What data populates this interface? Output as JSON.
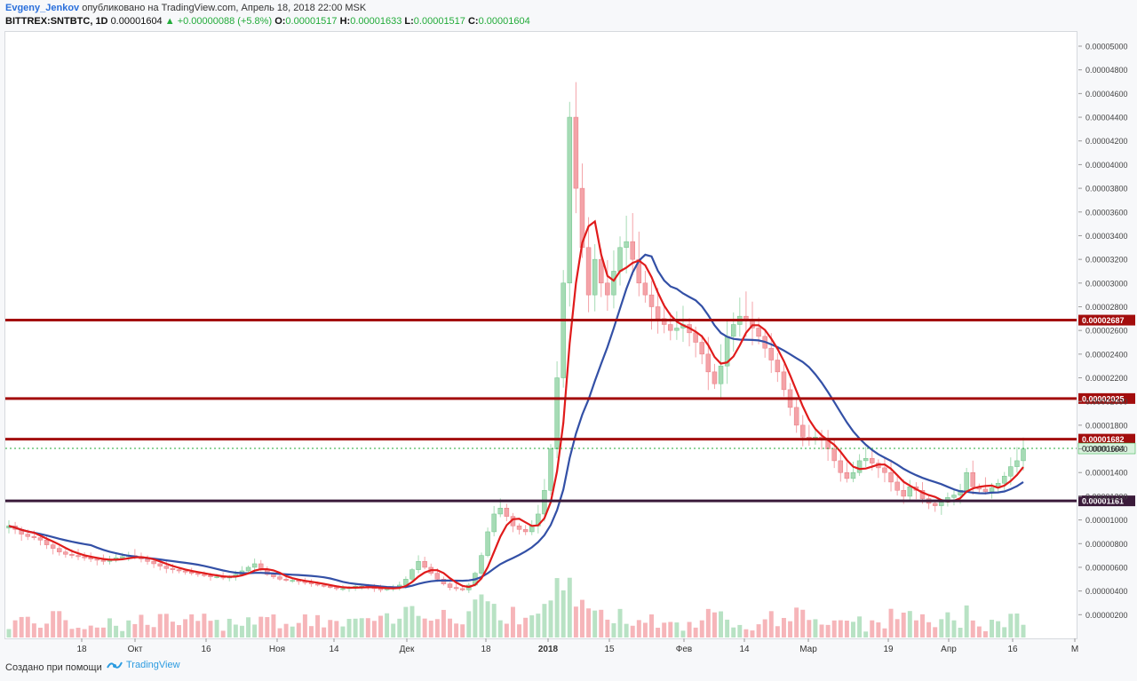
{
  "header": {
    "author": "Evgeny_Jenkov",
    "published_text": " опубликовано на TradingView.com, Апрель 18, 2018 22:00 MSK",
    "symbol": "BITTREX:SNTBTC, 1D",
    "last": "0.00001604",
    "change": "▲ +0.00000088 (+5.8%)",
    "open_label": "O:",
    "open": "0.00001517",
    "high_label": "H:",
    "high": "0.00001633",
    "low_label": "L:",
    "low": "0.00001517",
    "close_label": "C:",
    "close": "0.00001604"
  },
  "footer": {
    "created_with": "Создано при помощи",
    "brand": "TradingView"
  },
  "colors": {
    "up": "#22ab3a",
    "down": "#e0474c",
    "up_candle": "#a6dbb5",
    "down_candle": "#f4a3a8",
    "ma_fast": "#e01b1b",
    "ma_slow": "#3350a6",
    "volume_ma": "#f4a86a",
    "level": "#a30d0d",
    "support": "#3a1a3a",
    "current": "#22ab3a"
  },
  "chart_data": {
    "type": "candlestick",
    "y_scale": "linear",
    "ylim": [
      0,
      5.12e-05
    ],
    "y_ticks": [
      "0.00000200",
      "0.00000400",
      "0.00000600",
      "0.00000800",
      "0.00001000",
      "0.00001200",
      "0.00001400",
      "0.00001600",
      "0.00001800",
      "0.00002000",
      "0.00002200",
      "0.00002400",
      "0.00002600",
      "0.00002800",
      "0.00003000",
      "0.00003200",
      "0.00003400",
      "0.00003600",
      "0.00003800",
      "0.00004000",
      "0.00004200",
      "0.00004400",
      "0.00004600",
      "0.00004800",
      "0.00005000"
    ],
    "x_ticks": [
      "18",
      "Окт",
      "16",
      "Ноя",
      "14",
      "Дек",
      "18",
      "2018",
      "15",
      "Фев",
      "14",
      "Мар",
      "19",
      "Апр",
      "16",
      "М"
    ],
    "horizontal_levels": [
      {
        "value": 2.687e-05,
        "label": "0.00002687",
        "kind": "resistance"
      },
      {
        "value": 2.025e-05,
        "label": "0.00002025",
        "kind": "resistance"
      },
      {
        "value": 1.682e-05,
        "label": "0.00001682",
        "kind": "resistance"
      },
      {
        "value": 1.161e-05,
        "label": "0.00001161",
        "kind": "support"
      }
    ],
    "current_price": {
      "value": 1.604e-05,
      "label": "0.00001604"
    },
    "close_series_approx": [
      9.5e-06,
      9.2e-06,
      8.8e-06,
      8.6e-06,
      8.5e-06,
      8.3e-06,
      7.9e-06,
      7.6e-06,
      7.3e-06,
      7.1e-06,
      7e-06,
      6.9e-06,
      6.8e-06,
      6.7e-06,
      6.6e-06,
      6.5e-06,
      6.6e-06,
      6.8e-06,
      6.9e-06,
      7e-06,
      6.9e-06,
      6.7e-06,
      6.5e-06,
      6.3e-06,
      6.1e-06,
      5.9e-06,
      5.8e-06,
      5.7e-06,
      5.6e-06,
      5.5e-06,
      5.4e-06,
      5.3e-06,
      5.2e-06,
      5.2e-06,
      5.1e-06,
      5.2e-06,
      5.4e-06,
      5.7e-06,
      6e-06,
      6.3e-06,
      5.8e-06,
      5.4e-06,
      5.2e-06,
      5e-06,
      4.9e-06,
      4.9e-06,
      4.8e-06,
      4.7e-06,
      4.6e-06,
      4.5e-06,
      4.4e-06,
      4.3e-06,
      4.2e-06,
      4.2e-06,
      4.3e-06,
      4.4e-06,
      4.4e-06,
      4.3e-06,
      4.2e-06,
      4.1e-06,
      4.2e-06,
      4.3e-06,
      4.5e-06,
      5e-06,
      5.8e-06,
      6.5e-06,
      6e-06,
      5.5e-06,
      5e-06,
      4.6e-06,
      4.3e-06,
      4.2e-06,
      4.1e-06,
      4.5e-06,
      5.5e-06,
      7e-06,
      9e-06,
      1.05e-05,
      1.1e-05,
      1.03e-05,
      9.5e-06,
      9.2e-06,
      9e-06,
      9.5e-06,
      1.05e-05,
      1.25e-05,
      1.6e-05,
      2.2e-05,
      3e-05,
      4.4e-05,
      3.8e-05,
      3.3e-05,
      2.9e-05,
      3.2e-05,
      3e-05,
      2.9e-05,
      3.1e-05,
      3.3e-05,
      3.35e-05,
      3.2e-05,
      3e-05,
      2.9e-05,
      2.8e-05,
      2.7e-05,
      2.65e-05,
      2.6e-05,
      2.62e-05,
      2.65e-05,
      2.58e-05,
      2.5e-05,
      2.4e-05,
      2.25e-05,
      2.15e-05,
      2.3e-05,
      2.55e-05,
      2.65e-05,
      2.72e-05,
      2.68e-05,
      2.62e-05,
      2.55e-05,
      2.45e-05,
      2.35e-05,
      2.25e-05,
      2.1e-05,
      1.95e-05,
      1.8e-05,
      1.7e-05,
      1.69e-05,
      1.7e-05,
      1.68e-05,
      1.6e-05,
      1.5e-05,
      1.4e-05,
      1.35e-05,
      1.4e-05,
      1.5e-05,
      1.52e-05,
      1.48e-05,
      1.44e-05,
      1.4e-05,
      1.32e-05,
      1.25e-05,
      1.2e-05,
      1.28e-05,
      1.25e-05,
      1.18e-05,
      1.14e-05,
      1.12e-05,
      1.15e-05,
      1.19e-05,
      1.21e-05,
      1.25e-05,
      1.4e-05,
      1.28e-05,
      1.26e-05,
      1.24e-05,
      1.27e-05,
      1.31e-05,
      1.37e-05,
      1.45e-05,
      1.5e-05,
      1.6e-05
    ]
  }
}
